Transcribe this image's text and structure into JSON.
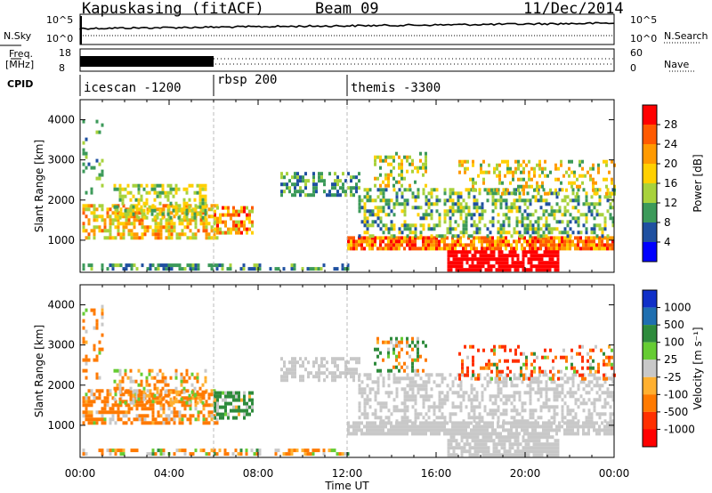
{
  "header": {
    "station": "Kapuskasing (fitACF)",
    "beam": "Beam 09",
    "date": "11/Dec/2014"
  },
  "noise_panel": {
    "left_label": "N.Sky",
    "right_label": "N.Search",
    "ticks_left": [
      "10^5",
      "10^0"
    ],
    "ticks_right": [
      "10^5",
      "10^0"
    ]
  },
  "freq_panel": {
    "left_label_1": "Freq.",
    "left_label_2": "[MHz]",
    "right_label": "Nave",
    "ticks_left": [
      "18",
      "8"
    ],
    "ticks_right": [
      "60",
      "0"
    ]
  },
  "cpid_panel": {
    "label": "CPID",
    "segments": [
      {
        "name": "icescan -1200",
        "start_hr": 0,
        "end_hr": 6
      },
      {
        "name": "rbsp 200",
        "start_hr": 6,
        "end_hr": 12
      },
      {
        "name": "themis -3300",
        "start_hr": 12,
        "end_hr": 24
      }
    ]
  },
  "chart_data": [
    {
      "type": "heatmap",
      "quantity": "Power",
      "ylabel": "Slant Range [km]",
      "ylim": [
        200,
        4500
      ],
      "yticks": [
        "1000",
        "2000",
        "3000",
        "4000"
      ],
      "xlim_hr": [
        0,
        24
      ],
      "colorbar_label": "Power [dB]",
      "colorbar_ticks": [
        "28",
        "24",
        "20",
        "16",
        "12",
        "8",
        "4"
      ],
      "colorbar_colors": [
        "#ff0000",
        "#ff5a00",
        "#ff9a00",
        "#ffd000",
        "#a8d23c",
        "#3c9a5a",
        "#1f50a0",
        "#0000ff"
      ]
    },
    {
      "type": "heatmap",
      "quantity": "Velocity",
      "ylabel": "Slant Range [km]",
      "ylim": [
        200,
        4500
      ],
      "yticks": [
        "1000",
        "2000",
        "3000",
        "4000"
      ],
      "xlim_hr": [
        0,
        24
      ],
      "xticks": [
        "00:00",
        "04:00",
        "08:00",
        "12:00",
        "16:00",
        "20:00",
        "00:00"
      ],
      "xlabel": "Time UT",
      "colorbar_label": "Velocity [m s⁻¹]",
      "colorbar_ticks": [
        "1000",
        "500",
        "100",
        "25",
        "-25",
        "-100",
        "-500",
        "-1000"
      ],
      "colorbar_colors": [
        "#1030c8",
        "#1f6fb0",
        "#2e8b3c",
        "#66cc33",
        "#c8c8c8",
        "#ffb030",
        "#ff7a00",
        "#ff3000",
        "#ff0000"
      ]
    }
  ]
}
